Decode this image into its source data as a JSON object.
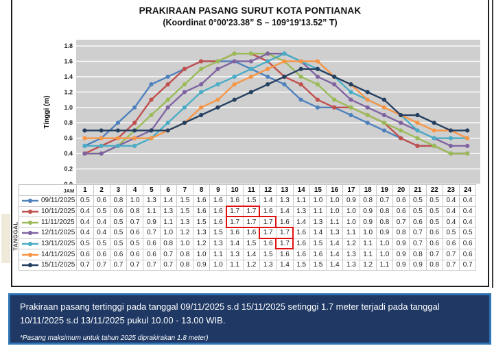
{
  "chart_data": {
    "type": "line",
    "title": "PRAKIRAAN PASANG SURUT KOTA PONTIANAK",
    "subtitle": "(Koordinat 0°00'23.38” S – 109°19'13.52” T)",
    "ylabel": "Tinggi (m)",
    "xlabel": "JAM",
    "ylim": [
      0.0,
      1.8
    ],
    "ytick_step": 0.2,
    "grid": true,
    "plot_bg": "#cfcfcf",
    "gridline_color": "#ffffff",
    "legend_position": "table-rows-left",
    "x": [
      1,
      2,
      3,
      4,
      5,
      6,
      7,
      8,
      9,
      10,
      11,
      12,
      13,
      14,
      15,
      16,
      17,
      18,
      19,
      20,
      21,
      22,
      23,
      24
    ],
    "series": [
      {
        "name": "09/11/2025",
        "color": "#4F81BD",
        "values": [
          0.5,
          0.6,
          0.8,
          1.0,
          1.3,
          1.4,
          1.5,
          1.6,
          1.6,
          1.6,
          1.5,
          1.4,
          1.3,
          1.1,
          1.0,
          1.0,
          0.9,
          0.8,
          0.7,
          0.6,
          0.5,
          0.5,
          0.4,
          0.4
        ]
      },
      {
        "name": "10/11/2025",
        "color": "#C0504D",
        "values": [
          0.4,
          0.5,
          0.6,
          0.8,
          1.1,
          1.3,
          1.5,
          1.6,
          1.6,
          1.7,
          1.7,
          1.6,
          1.4,
          1.3,
          1.1,
          1.0,
          1.0,
          0.9,
          0.8,
          0.6,
          0.5,
          0.5,
          0.4,
          0.4
        ]
      },
      {
        "name": "11/11/2025",
        "color": "#9BBB59",
        "values": [
          0.4,
          0.4,
          0.5,
          0.7,
          0.9,
          1.1,
          1.3,
          1.5,
          1.6,
          1.7,
          1.7,
          1.7,
          1.6,
          1.4,
          1.3,
          1.1,
          1.0,
          0.9,
          0.8,
          0.7,
          0.6,
          0.5,
          0.4,
          0.4
        ]
      },
      {
        "name": "12/11/2025",
        "color": "#8064A2",
        "values": [
          0.4,
          0.4,
          0.5,
          0.6,
          0.7,
          1.0,
          1.2,
          1.3,
          1.5,
          1.6,
          1.6,
          1.7,
          1.7,
          1.6,
          1.4,
          1.3,
          1.1,
          1.0,
          0.9,
          0.8,
          0.7,
          0.6,
          0.5,
          0.5
        ]
      },
      {
        "name": "13/11/2025",
        "color": "#4BACC6",
        "values": [
          0.5,
          0.5,
          0.5,
          0.5,
          0.6,
          0.8,
          1.0,
          1.2,
          1.3,
          1.4,
          1.5,
          1.6,
          1.7,
          1.6,
          1.5,
          1.4,
          1.2,
          1.1,
          1.0,
          0.9,
          0.7,
          0.6,
          0.6,
          0.6
        ]
      },
      {
        "name": "14/11/2025",
        "color": "#F79646",
        "values": [
          0.6,
          0.6,
          0.6,
          0.6,
          0.6,
          0.7,
          0.8,
          1.0,
          1.1,
          1.3,
          1.4,
          1.5,
          1.6,
          1.6,
          1.6,
          1.4,
          1.3,
          1.1,
          1.0,
          0.9,
          0.8,
          0.7,
          0.7,
          0.6
        ]
      },
      {
        "name": "15/11/2025",
        "color": "#254061",
        "values": [
          0.7,
          0.7,
          0.7,
          0.7,
          0.7,
          0.7,
          0.8,
          0.9,
          1.0,
          1.1,
          1.2,
          1.3,
          1.4,
          1.5,
          1.5,
          1.4,
          1.3,
          1.2,
          1.1,
          0.9,
          0.9,
          0.8,
          0.7,
          0.7
        ]
      }
    ]
  },
  "table": {
    "corner_label": "JAM",
    "row_axis_label": "TANGGAL",
    "highlight_color": "#e01010",
    "highlights": [
      {
        "row": 1,
        "from": 10,
        "to": 11
      },
      {
        "row": 2,
        "from": 10,
        "to": 12
      },
      {
        "row": 3,
        "from": 12,
        "to": 13
      },
      {
        "row": 4,
        "from": 13,
        "to": 13
      }
    ]
  },
  "footer": {
    "text": "Prakiraan pasang tertinggi pada tanggal 09/11/2025 s.d 15/11/2025 setinggi 1.7 meter terjadi pada tanggal 10/11/2025 s.d 13/11/2025 pukul 10.00 - 13.00 WIB.",
    "note": "*Pasang maksimum untuk tahun 2025 diprakirakan 1.8 meter)",
    "bg": "#1f3864",
    "border_color": "#2e74b5"
  }
}
